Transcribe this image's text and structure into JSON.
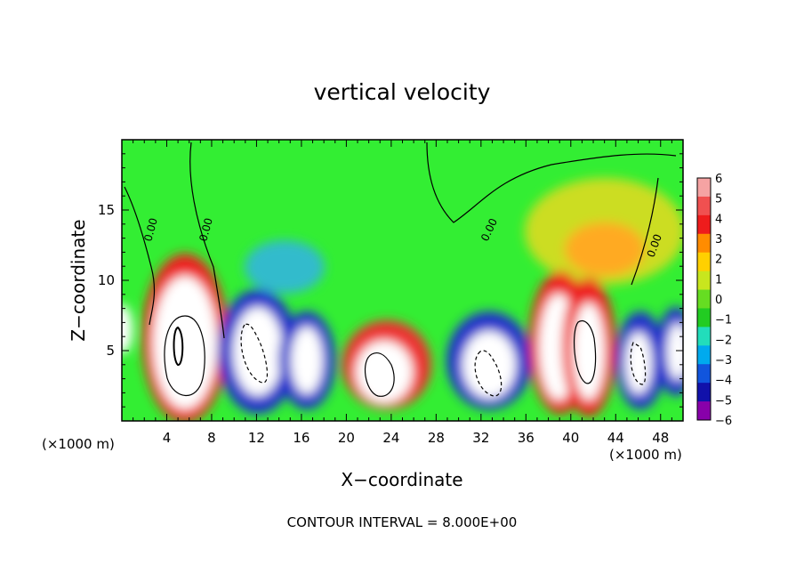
{
  "chart_data": {
    "type": "heatmap",
    "title": "vertical velocity",
    "xlabel": "X−coordinate",
    "ylabel": "Z−coordinate",
    "x_unit_left": "(×1000 m)",
    "x_unit_right": "(×1000 m)",
    "xlim": [
      0,
      50
    ],
    "ylim": [
      0,
      20
    ],
    "xticks": [
      4,
      8,
      12,
      16,
      20,
      24,
      28,
      32,
      36,
      40,
      44,
      48
    ],
    "yticks": [
      5,
      10,
      15
    ],
    "colorbar": {
      "min": -6,
      "max": 6,
      "ticks": [
        "6",
        "5",
        "4",
        "3",
        "2",
        "1",
        "0",
        "−1",
        "−2",
        "−3",
        "−4",
        "−5",
        "−6"
      ]
    },
    "footer": "CONTOUR INTERVAL = 8.000E+00",
    "contour_labels": [
      "0.00",
      "0.00",
      "0.00",
      "0.00"
    ],
    "cells": [
      {
        "x": 5.5,
        "z": 5.5,
        "w": 6
      },
      {
        "x": 12.5,
        "z": 5,
        "w": -6
      },
      {
        "x": 16,
        "z": 4.5,
        "w": -5
      },
      {
        "x": 23.5,
        "z": 4,
        "w": 6
      },
      {
        "x": 31.5,
        "z": 4.5,
        "w": -6
      },
      {
        "x": 38,
        "z": 5.5,
        "w": 6
      },
      {
        "x": 41.5,
        "z": 5,
        "w": 6
      },
      {
        "x": 45.5,
        "z": 4.5,
        "w": -6
      },
      {
        "x": 49,
        "z": 5,
        "w": -5
      },
      {
        "x": 41,
        "z": 13,
        "w": 3
      },
      {
        "x": 14,
        "z": 12,
        "w": -2
      }
    ]
  }
}
